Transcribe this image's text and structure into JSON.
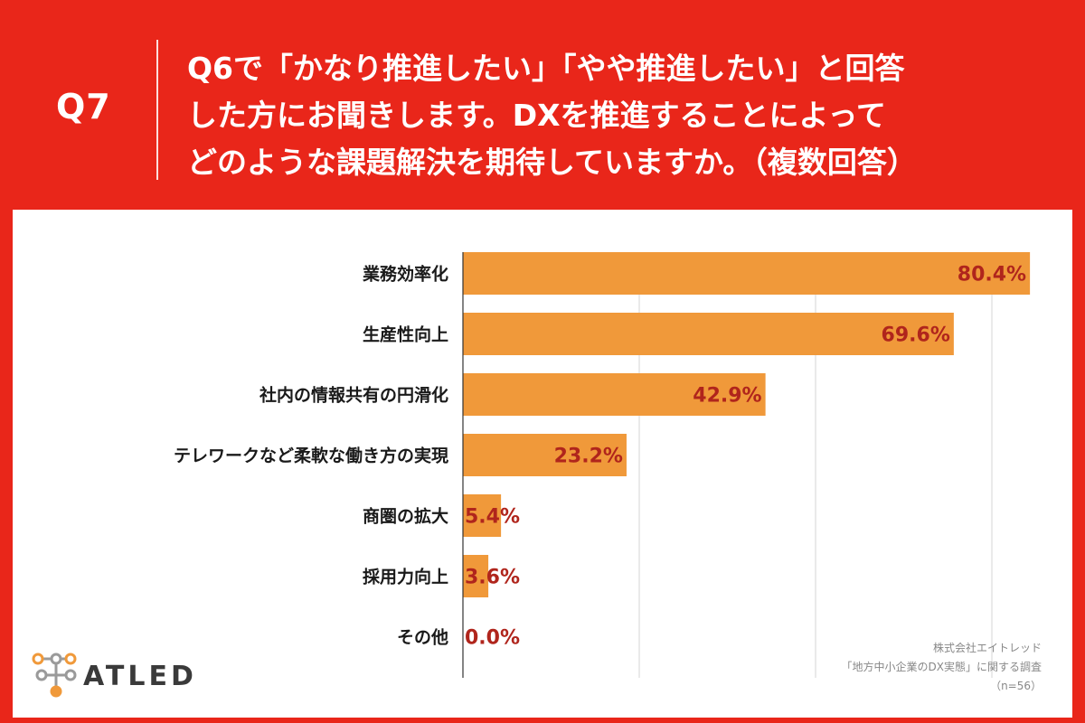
{
  "header": {
    "q_label": "Q7",
    "question_lines": [
      "Q6で「かなり推進したい」「やや推進したい」と回答",
      "した方にお聞きします。DXを推進することによって",
      "どのような課題解決を期待していますか。（複数回答）"
    ]
  },
  "chart_data": {
    "type": "bar",
    "orientation": "horizontal",
    "categories": [
      "業務効率化",
      "生産性向上",
      "社内の情報共有の円滑化",
      "テレワークなど柔軟な働き方の実現",
      "商圏の拡大",
      "採用力向上",
      "その他"
    ],
    "values": [
      80.4,
      69.6,
      42.9,
      23.2,
      5.4,
      3.6,
      0.0
    ],
    "value_labels": [
      "80.4%",
      "69.6%",
      "42.9%",
      "23.2%",
      "5.4%",
      "3.6%",
      "0.0%"
    ],
    "xlim": [
      0,
      100
    ],
    "grid": true,
    "bar_color": "#f0993a",
    "value_label_color": "#b0251c"
  },
  "footer": {
    "logo_text": "ATLED",
    "credit_lines": [
      "株式会社エイトレッド",
      "「地方中小企業のDX実態」に関する調査",
      "（n=56）"
    ]
  },
  "colors": {
    "background": "#e9261a",
    "panel": "#ffffff",
    "logo_orange": "#f0993a",
    "logo_gray": "#9a9a9a"
  }
}
